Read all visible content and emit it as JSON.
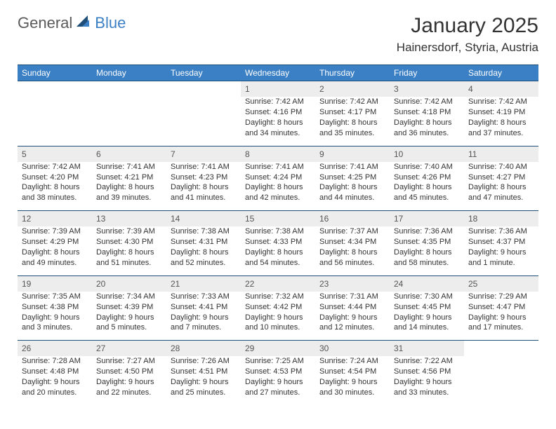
{
  "logo": {
    "text1": "General",
    "text2": "Blue"
  },
  "title": "January 2025",
  "location": "Hainersdorf, Styria, Austria",
  "day_headers": [
    "Sunday",
    "Monday",
    "Tuesday",
    "Wednesday",
    "Thursday",
    "Friday",
    "Saturday"
  ],
  "colors": {
    "header_bg": "#3b7fc4",
    "header_text": "#ffffff",
    "daynum_bg": "#ededed",
    "border": "#1f4e79",
    "body_text": "#333333",
    "logo_gray": "#5a5a5a",
    "logo_blue": "#3b7fc4"
  },
  "weeks": [
    [
      null,
      null,
      null,
      {
        "n": "1",
        "sr": "Sunrise: 7:42 AM",
        "ss": "Sunset: 4:16 PM",
        "d1": "Daylight: 8 hours",
        "d2": "and 34 minutes."
      },
      {
        "n": "2",
        "sr": "Sunrise: 7:42 AM",
        "ss": "Sunset: 4:17 PM",
        "d1": "Daylight: 8 hours",
        "d2": "and 35 minutes."
      },
      {
        "n": "3",
        "sr": "Sunrise: 7:42 AM",
        "ss": "Sunset: 4:18 PM",
        "d1": "Daylight: 8 hours",
        "d2": "and 36 minutes."
      },
      {
        "n": "4",
        "sr": "Sunrise: 7:42 AM",
        "ss": "Sunset: 4:19 PM",
        "d1": "Daylight: 8 hours",
        "d2": "and 37 minutes."
      }
    ],
    [
      {
        "n": "5",
        "sr": "Sunrise: 7:42 AM",
        "ss": "Sunset: 4:20 PM",
        "d1": "Daylight: 8 hours",
        "d2": "and 38 minutes."
      },
      {
        "n": "6",
        "sr": "Sunrise: 7:41 AM",
        "ss": "Sunset: 4:21 PM",
        "d1": "Daylight: 8 hours",
        "d2": "and 39 minutes."
      },
      {
        "n": "7",
        "sr": "Sunrise: 7:41 AM",
        "ss": "Sunset: 4:23 PM",
        "d1": "Daylight: 8 hours",
        "d2": "and 41 minutes."
      },
      {
        "n": "8",
        "sr": "Sunrise: 7:41 AM",
        "ss": "Sunset: 4:24 PM",
        "d1": "Daylight: 8 hours",
        "d2": "and 42 minutes."
      },
      {
        "n": "9",
        "sr": "Sunrise: 7:41 AM",
        "ss": "Sunset: 4:25 PM",
        "d1": "Daylight: 8 hours",
        "d2": "and 44 minutes."
      },
      {
        "n": "10",
        "sr": "Sunrise: 7:40 AM",
        "ss": "Sunset: 4:26 PM",
        "d1": "Daylight: 8 hours",
        "d2": "and 45 minutes."
      },
      {
        "n": "11",
        "sr": "Sunrise: 7:40 AM",
        "ss": "Sunset: 4:27 PM",
        "d1": "Daylight: 8 hours",
        "d2": "and 47 minutes."
      }
    ],
    [
      {
        "n": "12",
        "sr": "Sunrise: 7:39 AM",
        "ss": "Sunset: 4:29 PM",
        "d1": "Daylight: 8 hours",
        "d2": "and 49 minutes."
      },
      {
        "n": "13",
        "sr": "Sunrise: 7:39 AM",
        "ss": "Sunset: 4:30 PM",
        "d1": "Daylight: 8 hours",
        "d2": "and 51 minutes."
      },
      {
        "n": "14",
        "sr": "Sunrise: 7:38 AM",
        "ss": "Sunset: 4:31 PM",
        "d1": "Daylight: 8 hours",
        "d2": "and 52 minutes."
      },
      {
        "n": "15",
        "sr": "Sunrise: 7:38 AM",
        "ss": "Sunset: 4:33 PM",
        "d1": "Daylight: 8 hours",
        "d2": "and 54 minutes."
      },
      {
        "n": "16",
        "sr": "Sunrise: 7:37 AM",
        "ss": "Sunset: 4:34 PM",
        "d1": "Daylight: 8 hours",
        "d2": "and 56 minutes."
      },
      {
        "n": "17",
        "sr": "Sunrise: 7:36 AM",
        "ss": "Sunset: 4:35 PM",
        "d1": "Daylight: 8 hours",
        "d2": "and 58 minutes."
      },
      {
        "n": "18",
        "sr": "Sunrise: 7:36 AM",
        "ss": "Sunset: 4:37 PM",
        "d1": "Daylight: 9 hours",
        "d2": "and 1 minute."
      }
    ],
    [
      {
        "n": "19",
        "sr": "Sunrise: 7:35 AM",
        "ss": "Sunset: 4:38 PM",
        "d1": "Daylight: 9 hours",
        "d2": "and 3 minutes."
      },
      {
        "n": "20",
        "sr": "Sunrise: 7:34 AM",
        "ss": "Sunset: 4:39 PM",
        "d1": "Daylight: 9 hours",
        "d2": "and 5 minutes."
      },
      {
        "n": "21",
        "sr": "Sunrise: 7:33 AM",
        "ss": "Sunset: 4:41 PM",
        "d1": "Daylight: 9 hours",
        "d2": "and 7 minutes."
      },
      {
        "n": "22",
        "sr": "Sunrise: 7:32 AM",
        "ss": "Sunset: 4:42 PM",
        "d1": "Daylight: 9 hours",
        "d2": "and 10 minutes."
      },
      {
        "n": "23",
        "sr": "Sunrise: 7:31 AM",
        "ss": "Sunset: 4:44 PM",
        "d1": "Daylight: 9 hours",
        "d2": "and 12 minutes."
      },
      {
        "n": "24",
        "sr": "Sunrise: 7:30 AM",
        "ss": "Sunset: 4:45 PM",
        "d1": "Daylight: 9 hours",
        "d2": "and 14 minutes."
      },
      {
        "n": "25",
        "sr": "Sunrise: 7:29 AM",
        "ss": "Sunset: 4:47 PM",
        "d1": "Daylight: 9 hours",
        "d2": "and 17 minutes."
      }
    ],
    [
      {
        "n": "26",
        "sr": "Sunrise: 7:28 AM",
        "ss": "Sunset: 4:48 PM",
        "d1": "Daylight: 9 hours",
        "d2": "and 20 minutes."
      },
      {
        "n": "27",
        "sr": "Sunrise: 7:27 AM",
        "ss": "Sunset: 4:50 PM",
        "d1": "Daylight: 9 hours",
        "d2": "and 22 minutes."
      },
      {
        "n": "28",
        "sr": "Sunrise: 7:26 AM",
        "ss": "Sunset: 4:51 PM",
        "d1": "Daylight: 9 hours",
        "d2": "and 25 minutes."
      },
      {
        "n": "29",
        "sr": "Sunrise: 7:25 AM",
        "ss": "Sunset: 4:53 PM",
        "d1": "Daylight: 9 hours",
        "d2": "and 27 minutes."
      },
      {
        "n": "30",
        "sr": "Sunrise: 7:24 AM",
        "ss": "Sunset: 4:54 PM",
        "d1": "Daylight: 9 hours",
        "d2": "and 30 minutes."
      },
      {
        "n": "31",
        "sr": "Sunrise: 7:22 AM",
        "ss": "Sunset: 4:56 PM",
        "d1": "Daylight: 9 hours",
        "d2": "and 33 minutes."
      },
      null
    ]
  ]
}
